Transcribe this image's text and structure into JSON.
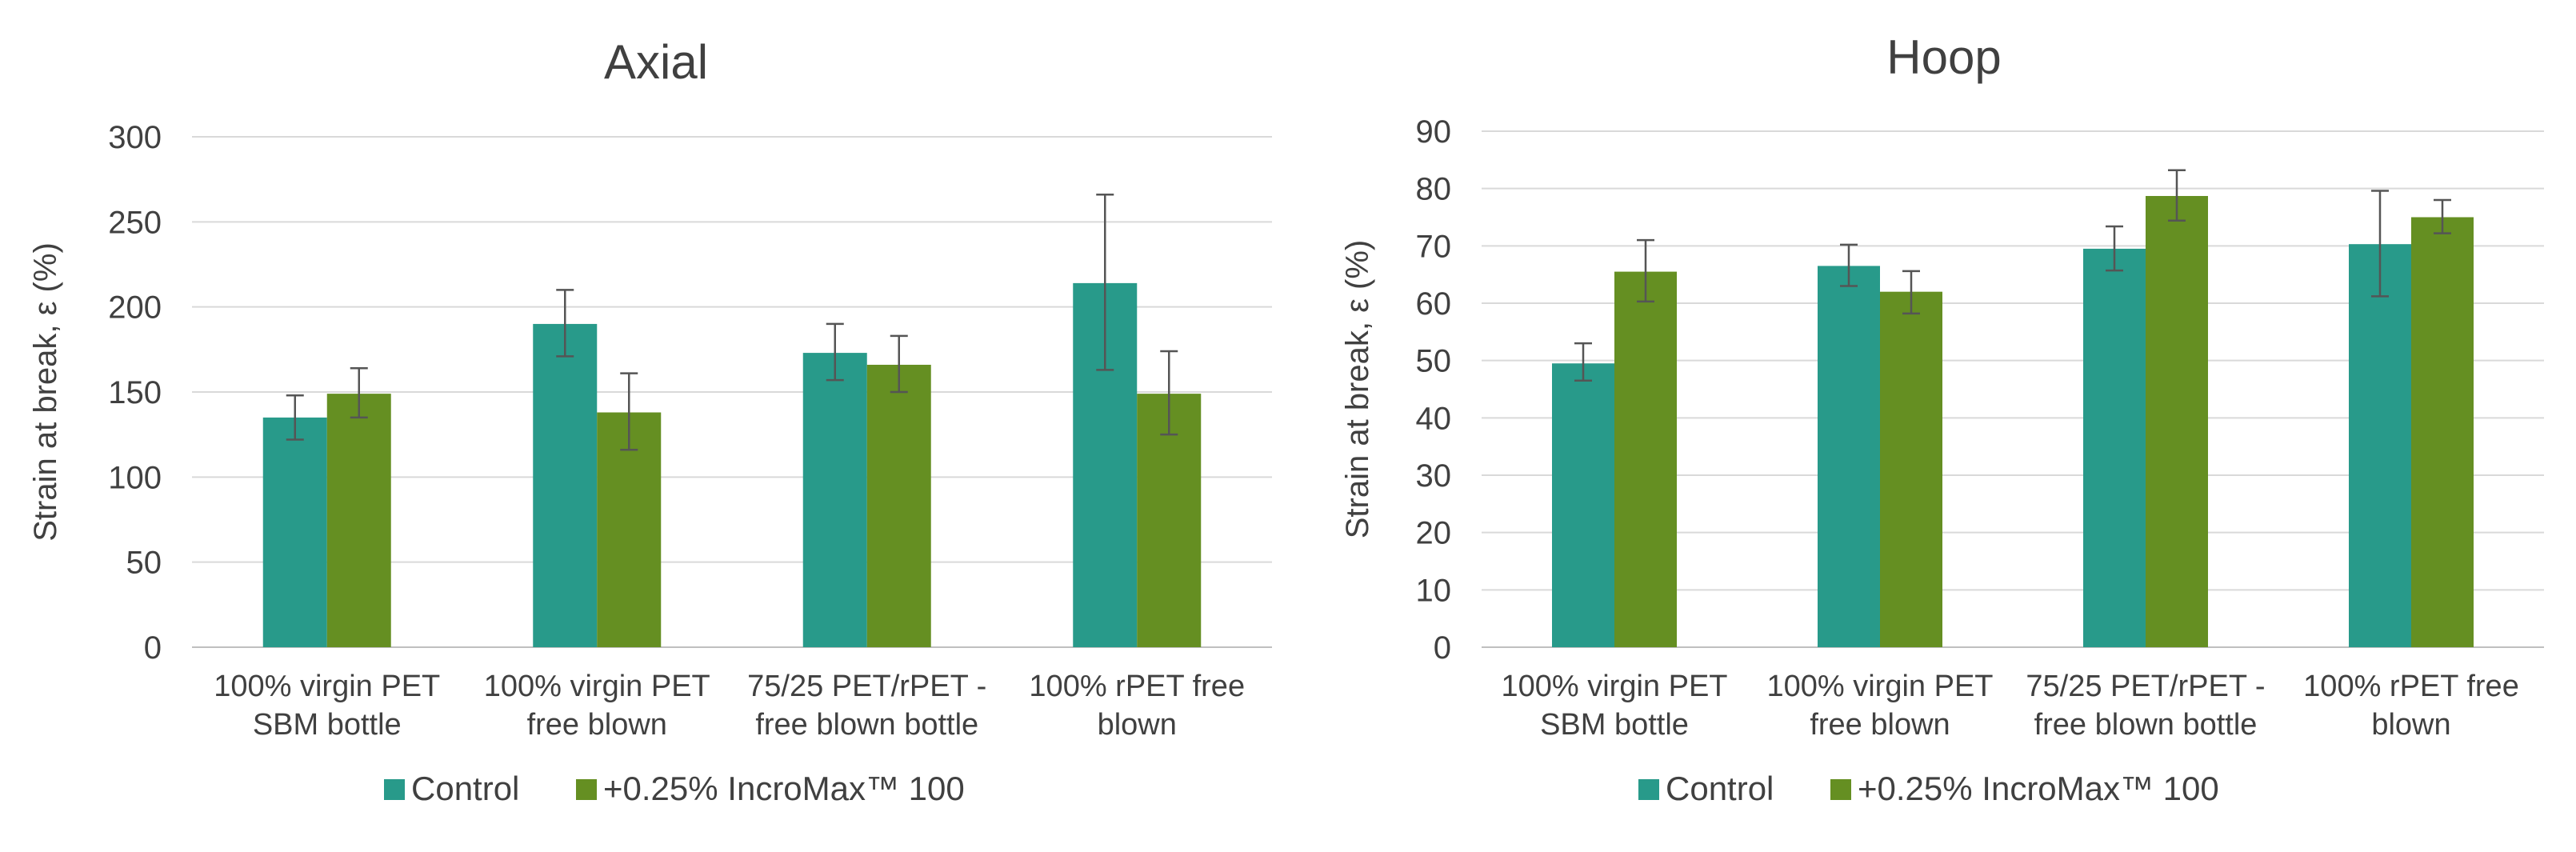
{
  "colors": {
    "control": "#289a8a",
    "incromax": "#658f22",
    "grid": "#d9d9d9",
    "axis": "#bfbfbf",
    "errorbar": "#555555",
    "text": "#404040"
  },
  "chart_data": [
    {
      "type": "bar",
      "title": "Axial",
      "ylabel": "Strain at break, ε (%)",
      "ylim": [
        0,
        300
      ],
      "yticks": [
        0,
        50,
        100,
        150,
        200,
        250,
        300
      ],
      "categories": [
        [
          "100% virgin PET",
          "SBM bottle"
        ],
        [
          "100% virgin PET",
          "free blown"
        ],
        [
          "75/25 PET/rPET -",
          "free blown bottle"
        ],
        [
          "100% rPET free",
          "blown"
        ]
      ],
      "series": [
        {
          "name": "Control",
          "values": [
            135,
            190,
            173,
            214
          ],
          "error_low": [
            122,
            171,
            157,
            163
          ],
          "error_high": [
            148,
            210,
            190,
            266
          ]
        },
        {
          "name": "+0.25% IncroMax™ 100",
          "values": [
            149,
            138,
            166,
            149
          ],
          "error_low": [
            135,
            116,
            150,
            125
          ],
          "error_high": [
            164,
            161,
            183,
            174
          ]
        }
      ],
      "grid": true,
      "legend": "bottom"
    },
    {
      "type": "bar",
      "title": "Hoop",
      "ylabel": "Strain at break, ε (%)",
      "ylim": [
        0,
        90
      ],
      "yticks": [
        0,
        10,
        20,
        30,
        40,
        50,
        60,
        70,
        80,
        90
      ],
      "categories": [
        [
          "100% virgin PET",
          "SBM bottle"
        ],
        [
          "100% virgin PET",
          "free blown"
        ],
        [
          "75/25 PET/rPET -",
          "free blown bottle"
        ],
        [
          "100% rPET free",
          "blown"
        ]
      ],
      "series": [
        {
          "name": "Control",
          "values": [
            49.5,
            66.5,
            69.5,
            70.3
          ],
          "error_low": [
            46.5,
            63.0,
            65.7,
            61.2
          ],
          "error_high": [
            53.0,
            70.2,
            73.4,
            79.6
          ]
        },
        {
          "name": "+0.25% IncroMax™ 100",
          "values": [
            65.5,
            62.0,
            78.7,
            75.0
          ],
          "error_low": [
            60.3,
            58.2,
            74.4,
            72.2
          ],
          "error_high": [
            71.0,
            65.6,
            83.2,
            78.0
          ]
        }
      ],
      "grid": true,
      "legend": "bottom"
    }
  ]
}
